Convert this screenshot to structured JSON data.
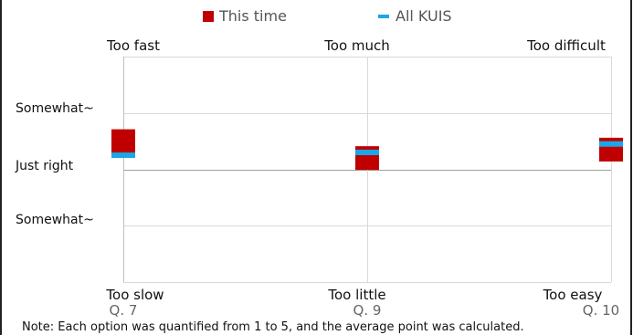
{
  "chart_data": {
    "type": "scatter",
    "legend": {
      "placement": "top",
      "items": [
        {
          "label": "This time",
          "marker": "square",
          "color": "#c00000"
        },
        {
          "label": "All KUIS",
          "marker": "dash",
          "color": "#1aa7e8"
        }
      ]
    },
    "categories": [
      "Q. 7",
      "Q. 9",
      "Q. 10"
    ],
    "top_labels": [
      "Too fast",
      "Too much",
      "Too difficult"
    ],
    "bottom_labels": [
      "Too slow",
      "Too little",
      "Too easy"
    ],
    "y_labels": [
      "Somewhat~",
      "Just right",
      "Somewhat~"
    ],
    "ylim": [
      1,
      5
    ],
    "y_reference": 3,
    "grid": true,
    "series": [
      {
        "name": "This time",
        "values": [
          3.5,
          3.2,
          3.35
        ]
      },
      {
        "name": "All KUIS",
        "values": [
          3.25,
          3.3,
          3.45
        ]
      }
    ]
  },
  "note": "Note:  Each option was quantified from 1 to 5, and the average point was calculated."
}
